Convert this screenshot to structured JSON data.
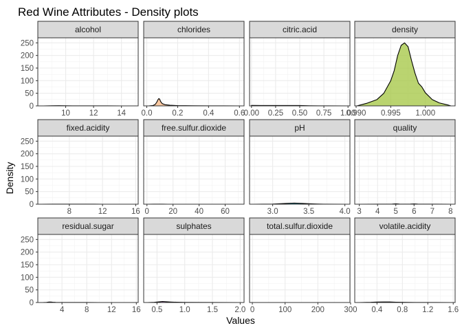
{
  "chart_data": {
    "type": "area",
    "title": "Red Wine Attributes - Density plots",
    "xlabel": "Values",
    "ylabel": "Density",
    "ylim": [
      0,
      270
    ],
    "y_ticks": [
      0,
      50,
      100,
      150,
      200,
      250
    ],
    "y_tick_labels": [
      "0",
      "50",
      "100",
      "150",
      "200",
      "250"
    ],
    "grid": true,
    "facets": [
      {
        "name": "alcohol",
        "fill": "#F8766D",
        "xlim": [
          8.0,
          15.2
        ],
        "x_ticks": [
          10,
          12,
          14
        ],
        "x_tick_labels": [
          "10",
          "12",
          "14"
        ],
        "x": [
          8.4,
          9.0,
          9.5,
          10.0,
          10.5,
          11.0,
          11.5,
          12.0,
          12.5,
          13.0,
          14.0,
          14.9
        ],
        "y": [
          0.01,
          0.4,
          0.9,
          0.5,
          0.35,
          0.28,
          0.22,
          0.16,
          0.12,
          0.06,
          0.02,
          0.0
        ]
      },
      {
        "name": "chlorides",
        "fill": "#F8B580",
        "xlim": [
          -0.02,
          0.63
        ],
        "x_ticks": [
          0.0,
          0.2,
          0.4,
          0.6
        ],
        "x_tick_labels": [
          "0.0",
          "0.2",
          "0.4",
          "0.6"
        ],
        "x": [
          0.012,
          0.04,
          0.055,
          0.065,
          0.072,
          0.078,
          0.083,
          0.09,
          0.1,
          0.12,
          0.15,
          0.2,
          0.3,
          0.4,
          0.5,
          0.611
        ],
        "y": [
          0,
          1.5,
          6,
          15,
          24,
          29,
          27,
          17,
          9,
          4.5,
          2.5,
          1.2,
          0.5,
          0.3,
          0.2,
          0
        ]
      },
      {
        "name": "citric.acid",
        "fill": "#E7D76F",
        "xlim": [
          -0.02,
          1.02
        ],
        "x_ticks": [
          0.0,
          0.25,
          0.5,
          0.75,
          1.0
        ],
        "x_tick_labels": [
          "0.00",
          "0.25",
          "0.50",
          "0.75",
          "1.00"
        ],
        "x": [
          0.0,
          0.1,
          0.2,
          0.3,
          0.4,
          0.5,
          0.6,
          0.7,
          0.8,
          1.0
        ],
        "y": [
          2.0,
          1.5,
          1.5,
          1.6,
          1.7,
          1.5,
          0.5,
          0.2,
          0.1,
          0.01
        ]
      },
      {
        "name": "density",
        "fill": "#A3C540",
        "xlim": [
          0.9898,
          1.0043
        ],
        "x_ticks": [
          0.99,
          0.995,
          1.0
        ],
        "x_tick_labels": [
          "0.990",
          "0.995",
          "1.000"
        ],
        "x": [
          0.9901,
          0.9915,
          0.993,
          0.994,
          0.995,
          0.9955,
          0.996,
          0.9965,
          0.997,
          0.9975,
          0.998,
          0.9985,
          0.999,
          0.9995,
          1.0,
          1.001,
          1.002,
          1.0032,
          1.0037
        ],
        "y": [
          0,
          10,
          25,
          50,
          100,
          140,
          200,
          240,
          250,
          235,
          180,
          130,
          90,
          75,
          52,
          25,
          12,
          4,
          0
        ]
      },
      {
        "name": "fixed.acidity",
        "fill": "#5CBD5C",
        "xlim": [
          4.2,
          16.3
        ],
        "x_ticks": [
          8,
          12,
          16
        ],
        "x_tick_labels": [
          "8",
          "12",
          "16"
        ],
        "x": [
          4.6,
          6.0,
          7.0,
          7.5,
          8.0,
          9.0,
          10.0,
          11.0,
          12.0,
          14.0,
          15.9
        ],
        "y": [
          0,
          0.05,
          0.18,
          0.25,
          0.24,
          0.15,
          0.1,
          0.06,
          0.04,
          0.01,
          0
        ]
      },
      {
        "name": "free.sulfur.dioxide",
        "fill": "#00BF9C",
        "xlim": [
          -2.5,
          74.5
        ],
        "x_ticks": [
          0,
          20,
          40,
          60
        ],
        "x_tick_labels": [
          "0",
          "20",
          "40",
          "60"
        ],
        "x": [
          1,
          5,
          8,
          12,
          16,
          20,
          30,
          40,
          50,
          60,
          72
        ],
        "y": [
          0,
          0.05,
          0.06,
          0.05,
          0.04,
          0.03,
          0.015,
          0.008,
          0.004,
          0.002,
          0
        ]
      },
      {
        "name": "pH",
        "fill": "#00BBDB",
        "xlim": [
          2.68,
          4.07
        ],
        "x_ticks": [
          3.0,
          3.5,
          4.0
        ],
        "x_tick_labels": [
          "3.0",
          "3.5",
          "4.0"
        ],
        "x": [
          2.74,
          3.0,
          3.1,
          3.2,
          3.3,
          3.4,
          3.5,
          3.6,
          3.7,
          4.01
        ],
        "y": [
          0,
          0.5,
          1.8,
          3.3,
          4.4,
          3.3,
          1.8,
          0.8,
          0.3,
          0
        ]
      },
      {
        "name": "quality",
        "fill": "#619CFF",
        "xlim": [
          2.75,
          8.25
        ],
        "x_ticks": [
          3,
          4,
          5,
          6,
          7,
          8
        ],
        "x_tick_labels": [
          "3",
          "4",
          "5",
          "6",
          "7",
          "8"
        ],
        "x": [
          3.0,
          4.0,
          4.8,
          5.0,
          5.2,
          5.5,
          5.8,
          6.0,
          6.2,
          7.0,
          8.0
        ],
        "y": [
          0,
          0.05,
          0.5,
          1.5,
          0.6,
          0.2,
          0.5,
          1.2,
          0.5,
          0.2,
          0
        ]
      },
      {
        "name": "residual.sugar",
        "fill": "#A58AFF",
        "xlim": [
          0.1,
          16.3
        ],
        "x_ticks": [
          4,
          8,
          12,
          16
        ],
        "x_tick_labels": [
          "4",
          "8",
          "12",
          "16"
        ],
        "x": [
          0.9,
          1.5,
          1.9,
          2.2,
          2.5,
          3.0,
          4.0,
          6.0,
          10.0,
          15.5
        ],
        "y": [
          0,
          0.5,
          1.8,
          2.0,
          1.2,
          0.6,
          0.3,
          0.1,
          0.02,
          0
        ]
      },
      {
        "name": "sulphates",
        "fill": "#DF70F8",
        "xlim": [
          0.26,
          2.07
        ],
        "x_ticks": [
          0.5,
          1.0,
          1.5,
          2.0
        ],
        "x_tick_labels": [
          "0.5",
          "1.0",
          "1.5",
          "2.0"
        ],
        "x": [
          0.33,
          0.45,
          0.55,
          0.6,
          0.65,
          0.75,
          0.85,
          1.0,
          1.5,
          2.0
        ],
        "y": [
          0,
          1.0,
          3.0,
          3.8,
          3.2,
          2.0,
          1.2,
          0.4,
          0.05,
          0
        ]
      },
      {
        "name": "total.sulfur.dioxide",
        "fill": "#FB61D7",
        "xlim": [
          -8.5,
          298
        ],
        "x_ticks": [
          0,
          100,
          200,
          300
        ],
        "x_tick_labels": [
          "0",
          "100",
          "200",
          "300"
        ],
        "x": [
          6,
          20,
          30,
          40,
          60,
          100,
          150,
          200,
          289
        ],
        "y": [
          0,
          0.012,
          0.015,
          0.014,
          0.01,
          0.004,
          0.001,
          0.0003,
          0
        ]
      },
      {
        "name": "volatile.acidity",
        "fill": "#FF6C91",
        "xlim": [
          0.05,
          1.63
        ],
        "x_ticks": [
          0.4,
          0.8,
          1.2,
          1.6
        ],
        "x_tick_labels": [
          "0.4",
          "0.8",
          "1.2",
          "1.6"
        ],
        "x": [
          0.12,
          0.3,
          0.4,
          0.5,
          0.6,
          0.7,
          0.8,
          1.0,
          1.2,
          1.58
        ],
        "y": [
          0,
          0.8,
          1.8,
          2.3,
          2.1,
          1.4,
          0.8,
          0.3,
          0.1,
          0
        ]
      }
    ]
  }
}
